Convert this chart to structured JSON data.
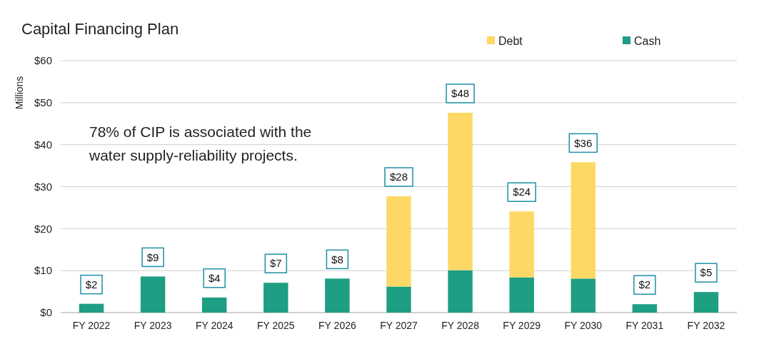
{
  "chart_data": {
    "type": "bar",
    "title": "Capital Financing Plan",
    "ylabel": "Millions",
    "categories": [
      "FY 2022",
      "FY 2023",
      "FY 2024",
      "FY 2025",
      "FY 2026",
      "FY 2027",
      "FY 2028",
      "FY 2029",
      "FY 2030",
      "FY 2031",
      "FY 2032"
    ],
    "series": [
      {
        "name": "Cash",
        "color": "#1e9e82",
        "values": [
          2.1,
          8.6,
          3.6,
          7.1,
          8.1,
          6.2,
          10.1,
          8.4,
          8.1,
          2.0,
          4.9
        ]
      },
      {
        "name": "Debt",
        "color": "#fdd865",
        "values": [
          0,
          0,
          0,
          0,
          0,
          21.5,
          37.5,
          15.7,
          27.7,
          0,
          0
        ]
      }
    ],
    "stacked": true,
    "totals": [
      "$2",
      "$9",
      "$4",
      "$7",
      "$8",
      "$28",
      "$48",
      "$24",
      "$36",
      "$2",
      "$5"
    ],
    "ylim": [
      0,
      60
    ],
    "yticks": [
      {
        "value": 0,
        "label": "$0"
      },
      {
        "value": 10,
        "label": "$10"
      },
      {
        "value": 20,
        "label": "$20"
      },
      {
        "value": 30,
        "label": "$30"
      },
      {
        "value": 40,
        "label": "$40"
      },
      {
        "value": 50,
        "label": "$50"
      },
      {
        "value": 60,
        "label": "$60"
      }
    ],
    "grid": "y",
    "legend": "top right",
    "annotations": [
      "78% of CIP is associated with the water supply-reliability projects."
    ]
  }
}
